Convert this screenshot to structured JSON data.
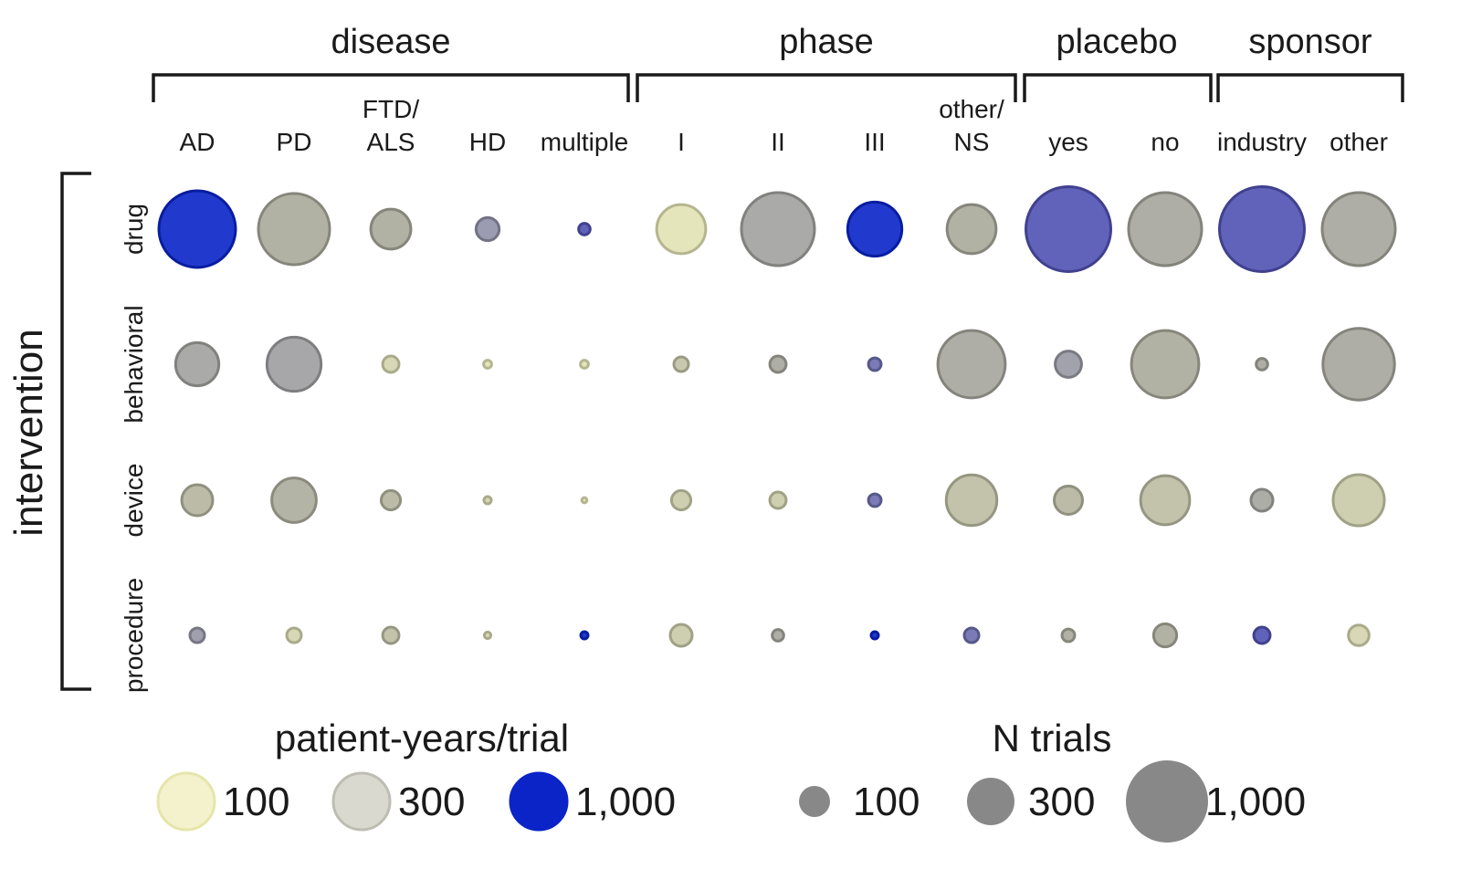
{
  "chart_data": {
    "type": "scatter",
    "subtype": "bubble-matrix",
    "row_axis_title": "intervention",
    "rows": [
      "drug",
      "behavioral",
      "device",
      "procedure"
    ],
    "column_groups": [
      {
        "label": "disease",
        "columns": [
          "AD",
          "PD",
          "FTD/\nALS",
          "HD",
          "multiple"
        ]
      },
      {
        "label": "phase",
        "columns": [
          "I",
          "II",
          "III",
          "other/\nNS"
        ]
      },
      {
        "label": "placebo",
        "columns": [
          "yes",
          "no"
        ]
      },
      {
        "label": "sponsor",
        "columns": [
          "industry",
          "other"
        ]
      }
    ],
    "encoding": {
      "size": "N trials",
      "color": "patient-years/trial"
    },
    "cells": [
      [
        {
          "n_trials": 1100,
          "patient_years": 1000
        },
        {
          "n_trials": 950,
          "patient_years": 300
        },
        {
          "n_trials": 300,
          "patient_years": 300
        },
        {
          "n_trials": 100,
          "patient_years": 500
        },
        {
          "n_trials": 25,
          "patient_years": 700
        },
        {
          "n_trials": 450,
          "patient_years": 120
        },
        {
          "n_trials": 1000,
          "patient_years": 350
        },
        {
          "n_trials": 550,
          "patient_years": 1000
        },
        {
          "n_trials": 450,
          "patient_years": 300
        },
        {
          "n_trials": 1350,
          "patient_years": 700
        },
        {
          "n_trials": 1000,
          "patient_years": 320
        },
        {
          "n_trials": 1350,
          "patient_years": 700
        },
        {
          "n_trials": 1000,
          "patient_years": 320
        }
      ],
      [
        {
          "n_trials": 350,
          "patient_years": 350
        },
        {
          "n_trials": 550,
          "patient_years": 380
        },
        {
          "n_trials": 50,
          "patient_years": 150
        },
        {
          "n_trials": 12,
          "patient_years": 120
        },
        {
          "n_trials": 12,
          "patient_years": 120
        },
        {
          "n_trials": 40,
          "patient_years": 200
        },
        {
          "n_trials": 50,
          "patient_years": 320
        },
        {
          "n_trials": 30,
          "patient_years": 600
        },
        {
          "n_trials": 850,
          "patient_years": 320
        },
        {
          "n_trials": 130,
          "patient_years": 420
        },
        {
          "n_trials": 850,
          "patient_years": 300
        },
        {
          "n_trials": 25,
          "patient_years": 320
        },
        {
          "n_trials": 960,
          "patient_years": 320
        }
      ],
      [
        {
          "n_trials": 180,
          "patient_years": 250
        },
        {
          "n_trials": 370,
          "patient_years": 280
        },
        {
          "n_trials": 70,
          "patient_years": 250
        },
        {
          "n_trials": 10,
          "patient_years": 150
        },
        {
          "n_trials": 5,
          "patient_years": 120
        },
        {
          "n_trials": 70,
          "patient_years": 180
        },
        {
          "n_trials": 50,
          "patient_years": 180
        },
        {
          "n_trials": 30,
          "patient_years": 600
        },
        {
          "n_trials": 480,
          "patient_years": 220
        },
        {
          "n_trials": 150,
          "patient_years": 250
        },
        {
          "n_trials": 450,
          "patient_years": 220
        },
        {
          "n_trials": 90,
          "patient_years": 330
        },
        {
          "n_trials": 490,
          "patient_years": 180
        }
      ],
      [
        {
          "n_trials": 40,
          "patient_years": 450
        },
        {
          "n_trials": 40,
          "patient_years": 150
        },
        {
          "n_trials": 50,
          "patient_years": 220
        },
        {
          "n_trials": 8,
          "patient_years": 150
        },
        {
          "n_trials": 10,
          "patient_years": 1000
        },
        {
          "n_trials": 90,
          "patient_years": 180
        },
        {
          "n_trials": 25,
          "patient_years": 320
        },
        {
          "n_trials": 10,
          "patient_years": 1000
        },
        {
          "n_trials": 40,
          "patient_years": 600
        },
        {
          "n_trials": 30,
          "patient_years": 300
        },
        {
          "n_trials": 100,
          "patient_years": 300
        },
        {
          "n_trials": 50,
          "patient_years": 700
        },
        {
          "n_trials": 80,
          "patient_years": 150
        }
      ]
    ],
    "legend_color": {
      "title": "patient-years/trial",
      "items": [
        {
          "label": "100",
          "value": 100,
          "color": "#f3f2cc",
          "stroke": "#e6e5aa"
        },
        {
          "label": "300",
          "value": 300,
          "color": "#d9d9cf",
          "stroke": "#bdbdb3"
        },
        {
          "label": "1,000",
          "value": 1000,
          "color": "#0a24c8",
          "stroke": "#0a24c8"
        }
      ]
    },
    "legend_size": {
      "title": "N trials",
      "color": "#888888",
      "items": [
        {
          "label": "100",
          "value": 100
        },
        {
          "label": "300",
          "value": 300
        },
        {
          "label": "1,000",
          "value": 1000
        }
      ]
    }
  }
}
